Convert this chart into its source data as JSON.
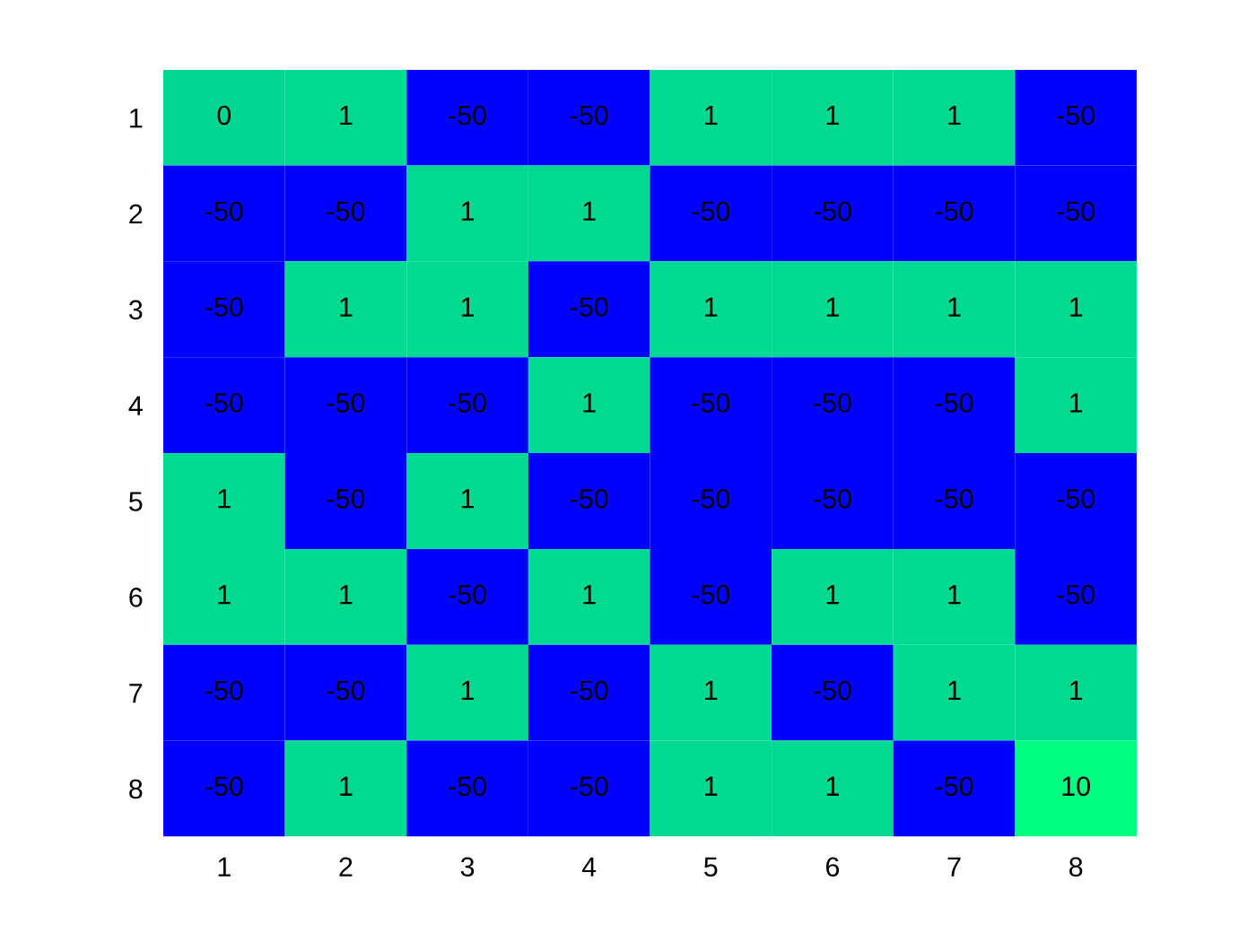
{
  "chart_data": {
    "type": "heatmap",
    "categories": [
      "1",
      "2",
      "3",
      "4",
      "5",
      "6",
      "7",
      "8"
    ],
    "y_categories": [
      "1",
      "2",
      "3",
      "4",
      "5",
      "6",
      "7",
      "8"
    ],
    "cells": [
      [
        0,
        1,
        -50,
        -50,
        1,
        1,
        1,
        -50
      ],
      [
        -50,
        -50,
        1,
        1,
        -50,
        -50,
        -50,
        -50
      ],
      [
        -50,
        1,
        1,
        -50,
        1,
        1,
        1,
        1
      ],
      [
        -50,
        -50,
        -50,
        1,
        -50,
        -50,
        -50,
        1
      ],
      [
        1,
        -50,
        1,
        -50,
        -50,
        -50,
        -50,
        -50
      ],
      [
        1,
        1,
        -50,
        1,
        -50,
        1,
        1,
        -50
      ],
      [
        -50,
        -50,
        1,
        -50,
        1,
        -50,
        1,
        1
      ],
      [
        -50,
        1,
        -50,
        -50,
        1,
        1,
        -50,
        10
      ]
    ],
    "data_labels": true,
    "grid": false
  }
}
